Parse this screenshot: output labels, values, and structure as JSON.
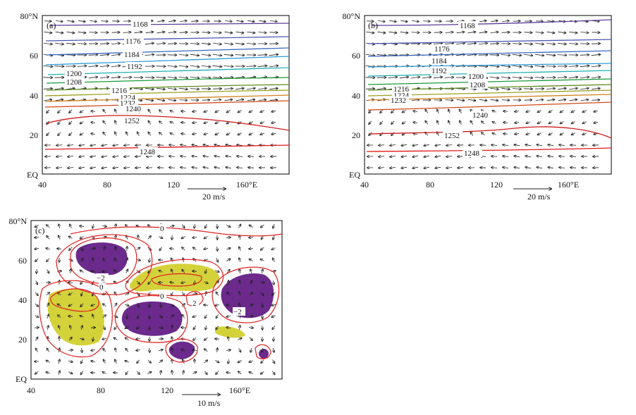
{
  "panels": [
    {
      "id": "a",
      "label": "(a)",
      "lat_ticks": [
        "80°N",
        "60",
        "40",
        "20",
        "EQ"
      ],
      "lon_ticks": [
        "40",
        "80",
        "120",
        "160°E"
      ],
      "ref_vector": "20 m/s",
      "contour_labels": [
        "1168",
        "1176",
        "1184",
        "1192",
        "1200",
        "1208",
        "1216",
        "1224",
        "1232",
        "1240",
        "1252",
        "1248"
      ]
    },
    {
      "id": "b",
      "label": "(b)",
      "lat_ticks": [
        "80°N",
        "60",
        "40",
        "20",
        "EQ"
      ],
      "lon_ticks": [
        "40",
        "80",
        "120",
        "160°E"
      ],
      "ref_vector": "20 m/s",
      "contour_labels": [
        "1168",
        "1176",
        "1184",
        "1192",
        "1200",
        "1208",
        "1216",
        "1224",
        "1232",
        "1240",
        "1252",
        "1248"
      ]
    },
    {
      "id": "c",
      "label": "(c)",
      "lat_ticks": [
        "80°N",
        "60",
        "40",
        "20",
        "EQ"
      ],
      "lon_ticks": [
        "40",
        "80",
        "120",
        "160°E"
      ],
      "ref_vector": "10 m/s",
      "contour_labels": [
        "0",
        "−2",
        "0",
        "0",
        "2",
        "−2"
      ]
    }
  ],
  "colors": {
    "positive_shading": "#d4d23a",
    "negative_shading": "#6b2a8c",
    "anomaly_contour": "#e02020",
    "vector": "#222222"
  }
}
